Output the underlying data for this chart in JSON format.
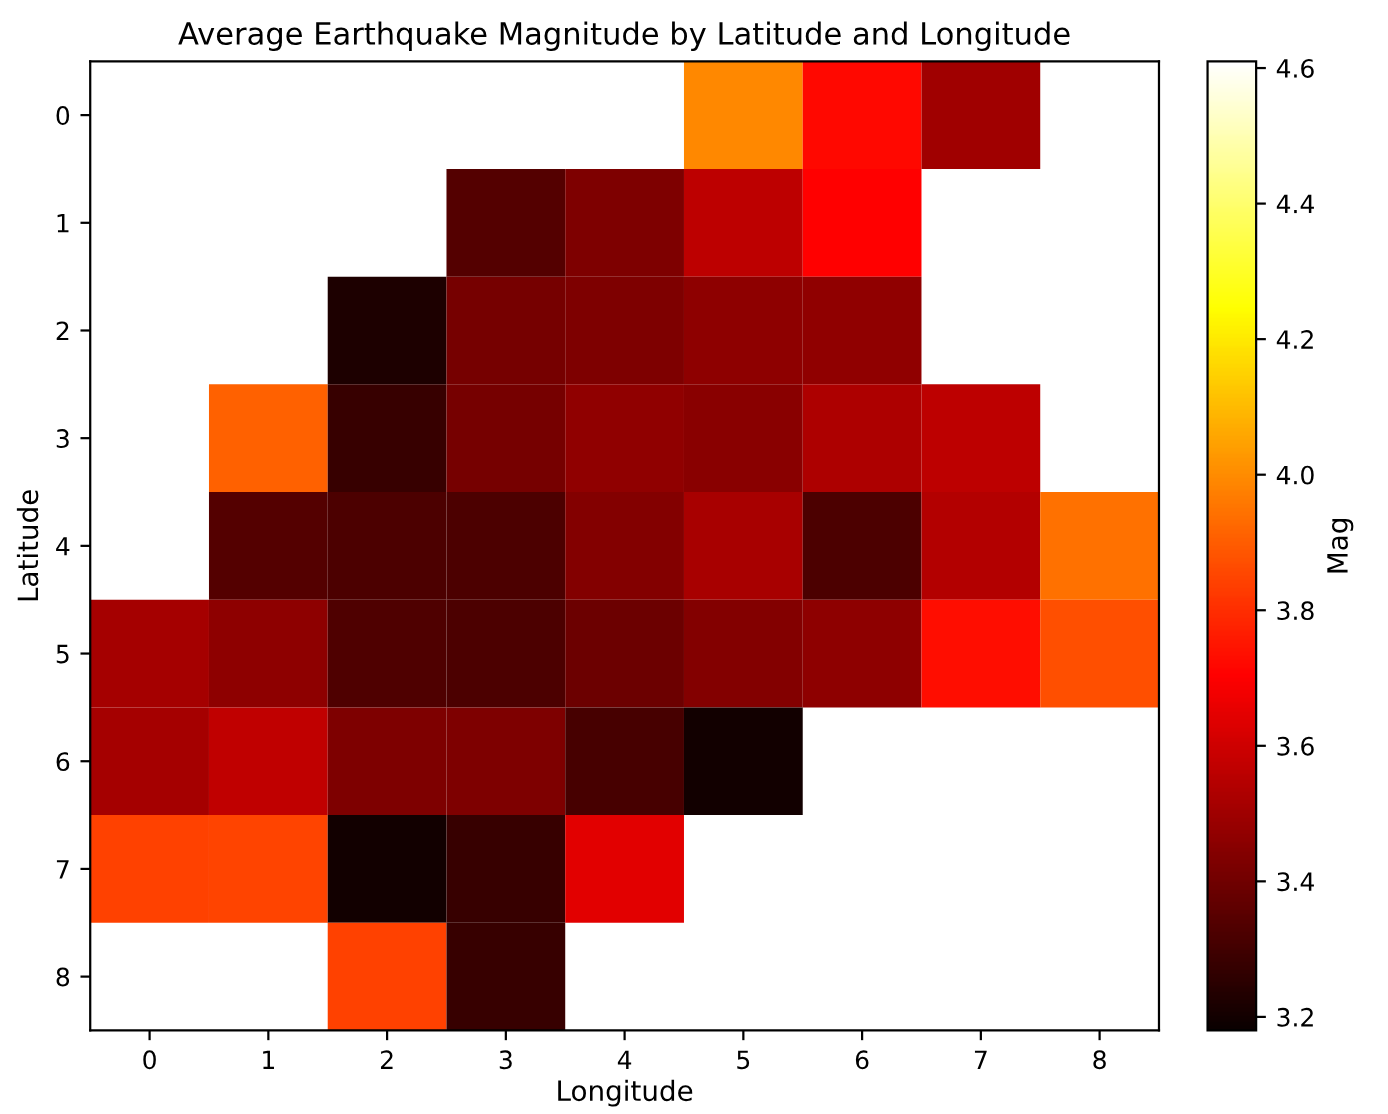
{
  "chart_data": {
    "type": "heatmap",
    "title": "Average Earthquake Magnitude by Latitude and Longitude",
    "xlabel": "Longitude",
    "ylabel": "Latitude",
    "clabel": "Mag",
    "categories": [
      "0",
      "1",
      "2",
      "3",
      "4",
      "5",
      "6",
      "7",
      "8"
    ],
    "y_categories": [
      "0",
      "1",
      "2",
      "3",
      "4",
      "5",
      "6",
      "7",
      "8"
    ],
    "cells": [
      [
        null,
        null,
        null,
        null,
        null,
        3.99,
        3.72,
        3.5,
        null
      ],
      [
        null,
        null,
        null,
        3.34,
        3.43,
        3.56,
        3.7,
        null,
        null
      ],
      [
        null,
        null,
        3.22,
        3.41,
        3.43,
        3.46,
        3.47,
        null,
        null
      ],
      [
        null,
        3.91,
        3.28,
        3.41,
        3.47,
        3.45,
        3.53,
        3.56,
        null
      ],
      [
        null,
        3.34,
        3.32,
        3.32,
        3.44,
        3.52,
        3.32,
        3.54,
        3.94
      ],
      [
        3.51,
        3.46,
        3.33,
        3.32,
        3.39,
        3.44,
        3.46,
        3.73,
        3.87
      ],
      [
        3.51,
        3.57,
        3.43,
        3.43,
        3.31,
        3.2,
        null,
        null,
        null
      ],
      [
        3.84,
        3.85,
        3.2,
        3.28,
        3.64,
        null,
        null,
        null,
        null
      ],
      [
        null,
        null,
        3.84,
        3.28,
        null,
        null,
        null,
        null,
        null
      ]
    ],
    "clim": [
      3.18,
      4.61
    ],
    "cticks": [
      3.2,
      3.4,
      3.6,
      3.8,
      {
        "value": 4,
        "label": "4.0"
      },
      4.2,
      4.4,
      4.6
    ]
  }
}
